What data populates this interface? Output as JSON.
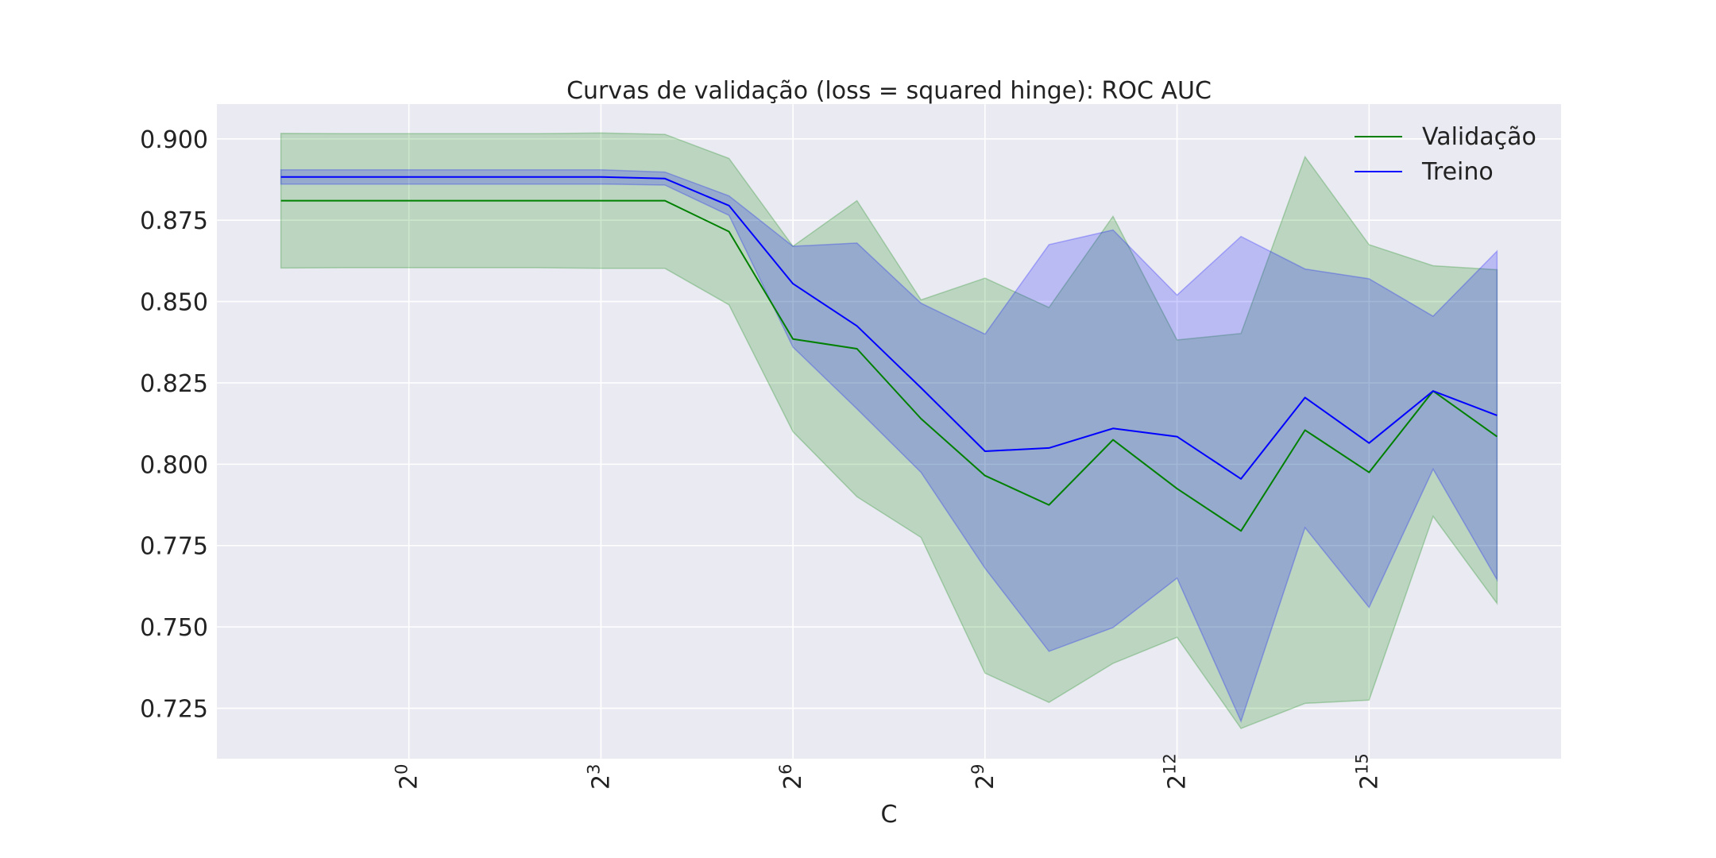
{
  "chart_data": {
    "type": "line",
    "title": "Curvas de validação (loss = squared hinge): ROC AUC",
    "xlabel": "C",
    "ylabel": "",
    "x_scale": "log2",
    "x": [
      -2,
      -1,
      0,
      1,
      2,
      3,
      4,
      5,
      6,
      7,
      8,
      9,
      10,
      11,
      12,
      13,
      14,
      15,
      16,
      17
    ],
    "xlim": [
      -3,
      18
    ],
    "ylim": [
      0.7095,
      0.9107
    ],
    "x_ticks": [
      {
        "base": "2",
        "exp": "0"
      },
      {
        "base": "2",
        "exp": "3"
      },
      {
        "base": "2",
        "exp": "6"
      },
      {
        "base": "2",
        "exp": "9"
      },
      {
        "base": "2",
        "exp": "12"
      },
      {
        "base": "2",
        "exp": "15"
      }
    ],
    "y_ticks": [
      "0.725",
      "0.750",
      "0.775",
      "0.800",
      "0.825",
      "0.850",
      "0.875",
      "0.900"
    ],
    "grid": true,
    "legend_position": "top-right",
    "series": [
      {
        "name": "Validação",
        "color": "#008000",
        "band_color": "#008000",
        "mean": [
          0.881,
          0.881,
          0.881,
          0.881,
          0.881,
          0.881,
          0.881,
          0.8715,
          0.8385,
          0.8355,
          0.814,
          0.7965,
          0.7875,
          0.8075,
          0.7925,
          0.7795,
          0.8105,
          0.7975,
          0.8225,
          0.8085
        ],
        "upper": [
          0.9017,
          0.9016,
          0.9016,
          0.9016,
          0.9016,
          0.9018,
          0.9014,
          0.894,
          0.867,
          0.881,
          0.8505,
          0.8572,
          0.8482,
          0.8762,
          0.8382,
          0.8402,
          0.8945,
          0.8675,
          0.861,
          0.8598
        ],
        "lower": [
          0.8603,
          0.8604,
          0.8604,
          0.8604,
          0.8604,
          0.8602,
          0.8602,
          0.849,
          0.81,
          0.79,
          0.7775,
          0.7358,
          0.7268,
          0.7388,
          0.7468,
          0.7188,
          0.7265,
          0.7275,
          0.784,
          0.7572
        ]
      },
      {
        "name": "Treino",
        "color": "#0000ff",
        "band_color": "#0000ff",
        "mean": [
          0.8883,
          0.8883,
          0.8883,
          0.8883,
          0.8883,
          0.8883,
          0.8878,
          0.8795,
          0.8555,
          0.8425,
          0.8235,
          0.804,
          0.805,
          0.811,
          0.8085,
          0.7955,
          0.8205,
          0.8065,
          0.8225,
          0.815
        ],
        "upper": [
          0.8905,
          0.8905,
          0.8905,
          0.8905,
          0.8905,
          0.8905,
          0.8898,
          0.8825,
          0.867,
          0.868,
          0.8495,
          0.84,
          0.8675,
          0.872,
          0.852,
          0.87,
          0.86,
          0.857,
          0.8455,
          0.8655
        ],
        "lower": [
          0.8861,
          0.8861,
          0.8861,
          0.8861,
          0.8861,
          0.8861,
          0.8858,
          0.8765,
          0.836,
          0.817,
          0.7975,
          0.768,
          0.7425,
          0.7498,
          0.765,
          0.721,
          0.7805,
          0.756,
          0.7985,
          0.7645
        ]
      }
    ]
  }
}
